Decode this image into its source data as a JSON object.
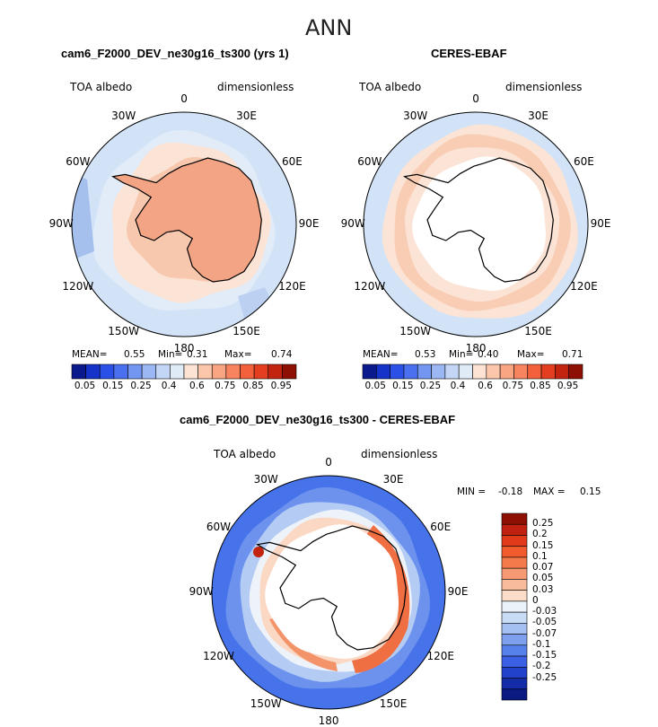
{
  "figure_title": "ANN",
  "panels": [
    {
      "title": "cam6_F2000_DEV_ne30g16_ts300 (yrs 1)",
      "variable": "TOA albedo",
      "units": "dimensionless",
      "stats": {
        "mean_label": "MEAN=",
        "mean": "0.55",
        "min_label": "Min=",
        "min": "0.31",
        "max_label": "Max=",
        "max": "0.74"
      }
    },
    {
      "title": "CERES-EBAF",
      "variable": "TOA albedo",
      "units": "dimensionless",
      "stats": {
        "mean_label": "MEAN=",
        "mean": "0.53",
        "min_label": "Min=",
        "min": "0.40",
        "max_label": "Max=",
        "max": "0.71"
      }
    },
    {
      "title": "cam6_F2000_DEV_ne30g16_ts300 - CERES-EBAF",
      "variable": "TOA albedo",
      "units": "dimensionless",
      "stats": {
        "min_label": "MIN =",
        "min": "-0.18",
        "max_label": "MAX =",
        "max": "0.15"
      }
    }
  ],
  "lon_labels": [
    "0",
    "30E",
    "60E",
    "90E",
    "120E",
    "150E",
    "180",
    "150W",
    "120W",
    "90W",
    "60W",
    "30W"
  ],
  "colorbar_abs": {
    "colors": [
      "#0a1a8c",
      "#1533c8",
      "#2a50e8",
      "#4a70f0",
      "#7296f2",
      "#9cb8f4",
      "#c4d6f6",
      "#e0ebf8",
      "#fde3d3",
      "#fbc6a9",
      "#f9a583",
      "#f7845f",
      "#f2603c",
      "#e23e1f",
      "#c22410",
      "#8e1004"
    ],
    "labels": [
      "0.05",
      "0.15",
      "0.25",
      "0.4",
      "0.6",
      "0.75",
      "0.85",
      "0.95"
    ]
  },
  "colorbar_diff": {
    "colors": [
      "#8e1004",
      "#c02010",
      "#e03a1a",
      "#f05a2c",
      "#f47a4c",
      "#f69a74",
      "#f8bc9c",
      "#fbdcc8",
      "#eaf2fa",
      "#c8dcf5",
      "#a4c0f2",
      "#7ea0ee",
      "#5680ea",
      "#3a60e4",
      "#2242cc",
      "#142ca8",
      "#0a1a80"
    ],
    "labels": [
      "0.25",
      "0.2",
      "0.15",
      "0.1",
      "0.07",
      "0.05",
      "0.03",
      "0",
      "-0.03",
      "-0.05",
      "-0.07",
      "-0.1",
      "-0.15",
      "-0.2",
      "-0.25"
    ]
  },
  "chart_data": [
    {
      "type": "heatmap",
      "title": "cam6_F2000_DEV_ne30g16_ts300 (yrs 1)",
      "projection": "south polar stereographic",
      "variable": "TOA albedo",
      "units": "dimensionless",
      "mean": 0.55,
      "min": 0.31,
      "max": 0.74,
      "contour_levels": [
        0.05,
        0.1,
        0.15,
        0.2,
        0.25,
        0.3,
        0.35,
        0.4,
        0.5,
        0.6,
        0.7,
        0.75,
        0.8,
        0.85,
        0.9,
        0.95
      ]
    },
    {
      "type": "heatmap",
      "title": "CERES-EBAF",
      "projection": "south polar stereographic",
      "variable": "TOA albedo",
      "units": "dimensionless",
      "mean": 0.53,
      "min": 0.4,
      "max": 0.71,
      "contour_levels": [
        0.05,
        0.1,
        0.15,
        0.2,
        0.25,
        0.3,
        0.35,
        0.4,
        0.5,
        0.6,
        0.7,
        0.75,
        0.8,
        0.85,
        0.9,
        0.95
      ]
    },
    {
      "type": "heatmap",
      "title": "cam6_F2000_DEV_ne30g16_ts300 - CERES-EBAF",
      "projection": "south polar stereographic",
      "variable": "TOA albedo difference",
      "units": "dimensionless",
      "min": -0.18,
      "max": 0.15,
      "contour_levels": [
        -0.25,
        -0.2,
        -0.15,
        -0.1,
        -0.07,
        -0.05,
        -0.03,
        0,
        0.03,
        0.05,
        0.07,
        0.1,
        0.15,
        0.2,
        0.25
      ]
    }
  ]
}
